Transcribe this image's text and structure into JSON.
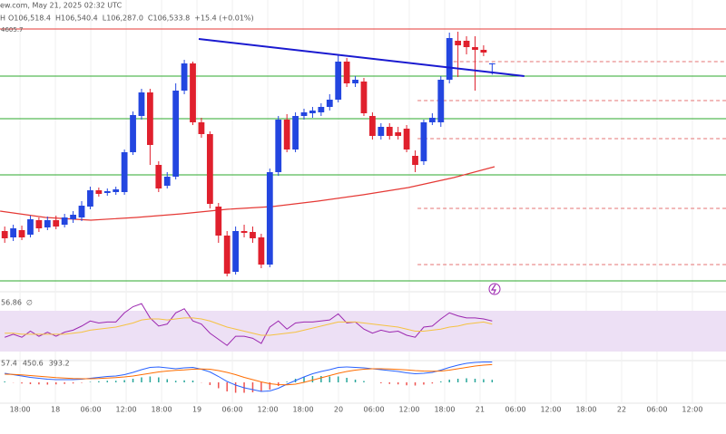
{
  "header": {
    "source": "ew.com, May 21, 2025 02:32 UTC",
    "interval": "H",
    "ohlc_labels": [
      "O106,518.4",
      "H106,540.4",
      "L106,287.0",
      "C106,533.8"
    ],
    "change": "+15.4 (+0.01%)",
    "price_tag": "4605.7"
  },
  "chart_data": [
    {
      "type": "candlestick",
      "up_color": "#2346e0",
      "down_color": "#e0202d",
      "grid": true,
      "xlim": [
        -3.4,
        119.7
      ],
      "ylim": [
        101534,
        107934
      ],
      "xticks": [
        {
          "value": 0,
          "label": "18:00"
        },
        {
          "value": 6,
          "label": "18"
        },
        {
          "value": 12,
          "label": "06:00"
        },
        {
          "value": 18,
          "label": "12:00"
        },
        {
          "value": 24,
          "label": "18:00"
        },
        {
          "value": 30,
          "label": "19"
        },
        {
          "value": 36,
          "label": "06:00"
        },
        {
          "value": 42,
          "label": "12:00"
        },
        {
          "value": 48,
          "label": "18:00"
        },
        {
          "value": 54,
          "label": "20"
        },
        {
          "value": 60,
          "label": "06:00"
        },
        {
          "value": 66,
          "label": "12:00"
        },
        {
          "value": 72,
          "label": "18:00"
        },
        {
          "value": 78,
          "label": "21"
        },
        {
          "value": 84,
          "label": "06:00"
        },
        {
          "value": 90,
          "label": "12:00"
        },
        {
          "value": 96,
          "label": "18:00"
        },
        {
          "value": 102,
          "label": "22"
        },
        {
          "value": 108,
          "label": "06:00"
        },
        {
          "value": 114,
          "label": "12:00"
        }
      ],
      "x": [
        -2.6,
        -1.15,
        0.3,
        1.75,
        3.2,
        4.65,
        6.1,
        7.55,
        9,
        10.45,
        11.9,
        13.35,
        14.8,
        16.25,
        17.7,
        19.15,
        20.6,
        22.05,
        23.5,
        24.95,
        26.4,
        27.85,
        29.3,
        30.75,
        32.2,
        33.65,
        35.1,
        36.55,
        38,
        39.45,
        40.9,
        42.35,
        43.8,
        45.25,
        46.7,
        48.15,
        49.6,
        51.05,
        52.5,
        53.95,
        55.4,
        56.85,
        58.3,
        59.75,
        61.2,
        62.65,
        64.1,
        65.55,
        67,
        68.45,
        69.9,
        71.35,
        72.8,
        74.25,
        75.7,
        77.15,
        78.6,
        80.05
      ],
      "open": [
        102834,
        102694,
        102854,
        102754,
        103074,
        102914,
        103074,
        102974,
        103094,
        103134,
        103374,
        103734,
        103674,
        103694,
        103694,
        104574,
        105374,
        105894,
        104294,
        103834,
        104034,
        105934,
        106534,
        105234,
        104974,
        103374,
        102734,
        101934,
        102834,
        102814,
        102694,
        102094,
        104134,
        105294,
        104634,
        105374,
        105434,
        105454,
        105574,
        105734,
        106574,
        106094,
        106134,
        105374,
        104934,
        105134,
        105014,
        105094,
        104494,
        104374,
        105234,
        105234,
        106174,
        107034,
        107034,
        106894,
        106834,
        106518.4
      ],
      "high": [
        102934,
        102974,
        102954,
        103174,
        103134,
        103154,
        103174,
        103214,
        103274,
        103494,
        103814,
        103794,
        103774,
        103814,
        104634,
        105474,
        105974,
        105974,
        104374,
        104134,
        106094,
        106614,
        106574,
        105334,
        105034,
        103454,
        102834,
        102934,
        102974,
        102934,
        102774,
        104214,
        105374,
        105414,
        105454,
        105534,
        105574,
        105654,
        105854,
        106734,
        106654,
        106254,
        106214,
        105454,
        105214,
        105214,
        105134,
        105174,
        104614,
        105294,
        105434,
        106254,
        107214,
        107234,
        107134,
        107134,
        106934,
        106540.4
      ],
      "low": [
        102574,
        102614,
        102634,
        102694,
        102814,
        102854,
        102874,
        102914,
        103014,
        103054,
        103314,
        103594,
        103614,
        103634,
        103634,
        104514,
        105294,
        104294,
        103694,
        103774,
        103974,
        105854,
        105174,
        104894,
        103334,
        102574,
        101834,
        101874,
        102694,
        102574,
        102014,
        102034,
        104054,
        104574,
        104574,
        105294,
        105334,
        105374,
        105494,
        105674,
        106014,
        106014,
        105374,
        104854,
        104854,
        104854,
        104854,
        104574,
        104134,
        104294,
        105174,
        105134,
        106094,
        106234,
        106734,
        105934,
        106694,
        106287.0
      ],
      "close": [
        102674,
        102894,
        102694,
        103094,
        102894,
        103074,
        102934,
        103134,
        103194,
        103394,
        103734,
        103654,
        103714,
        103754,
        104574,
        105394,
        105894,
        104734,
        103774,
        104034,
        105934,
        106534,
        105234,
        104974,
        103434,
        102734,
        101894,
        102834,
        102794,
        102674,
        102094,
        104134,
        105294,
        104634,
        105374,
        105454,
        105494,
        105574,
        105734,
        106574,
        106094,
        106174,
        105434,
        104934,
        105134,
        104934,
        104934,
        104634,
        104294,
        105234,
        105334,
        106174,
        107094,
        106934,
        106894,
        106834,
        106774,
        106533.8
      ],
      "levels": [
        {
          "value": 107294,
          "color": "#e53935"
        },
        {
          "value": 106254,
          "color": "#2ea82e"
        },
        {
          "value": 105314,
          "color": "#2ea82e"
        },
        {
          "value": 104074,
          "color": "#2ea82e"
        },
        {
          "value": 101734,
          "color": "#2ea82e"
        },
        {
          "value": 106574,
          "color": "#e57373",
          "x_from": 73.5,
          "dashed": true
        },
        {
          "value": 105714,
          "color": "#e57373",
          "x_from": 67.4,
          "dashed": true
        },
        {
          "value": 104874,
          "color": "#e57373",
          "x_from": 67.4,
          "dashed": true
        },
        {
          "value": 103334,
          "color": "#e57373",
          "x_from": 67.4,
          "dashed": true
        },
        {
          "value": 102094,
          "color": "#e57373",
          "x_from": 67.4,
          "dashed": true
        }
      ],
      "trendline": {
        "x": [
          30.3,
          85.5
        ],
        "values": [
          107074,
          106254
        ],
        "color": "#1a1ad0"
      },
      "ma": {
        "x": [
          -3.38,
          4.31,
          12,
          19.69,
          27.38,
          35.08,
          42.77,
          50.46,
          58.15,
          65.85,
          73.54,
          80.46
        ],
        "values": [
          103274,
          103134,
          103074,
          103134,
          103214,
          103314,
          103374,
          103494,
          103634,
          103794,
          104014,
          104254
        ],
        "color": "#e53935"
      }
    },
    {
      "type": "rsi",
      "ylim": [
        21.1,
        87.8
      ],
      "band": [
        30,
        70
      ],
      "band_color": "#ede0f5",
      "series": [
        {
          "color": "#9c27b0",
          "values": [
            44,
            47,
            44,
            50,
            45,
            49,
            45,
            49,
            51,
            55,
            60,
            58,
            59,
            59,
            68,
            74,
            77,
            63,
            55,
            57,
            68,
            72,
            60,
            57,
            48,
            42,
            36,
            45,
            45,
            43,
            38,
            54,
            60,
            52,
            58,
            59,
            59,
            60,
            61,
            67,
            58,
            59,
            52,
            48,
            51,
            49,
            50,
            46,
            44,
            54,
            55,
            62,
            68,
            65,
            63,
            63,
            62,
            60
          ]
        },
        {
          "color": "#f5c242",
          "values": [
            48,
            48,
            47,
            47,
            47,
            47,
            47,
            47,
            48,
            49,
            51,
            52,
            53,
            54,
            56,
            58,
            61,
            62,
            62,
            61,
            62,
            63,
            63,
            62,
            60,
            57,
            54,
            52,
            50,
            48,
            46,
            46,
            47,
            48,
            49,
            51,
            53,
            55,
            57,
            59,
            59,
            59,
            58,
            57,
            56,
            55,
            54,
            52,
            50,
            50,
            51,
            52,
            54,
            55,
            57,
            58,
            59,
            56.86
          ]
        }
      ],
      "symbol": "∅"
    },
    {
      "type": "macd",
      "ylim": [
        -460,
        480
      ],
      "histogram": {
        "up_color": "#26a69a",
        "down_color": "#ef5350",
        "values": [
          20,
          -5,
          -25,
          -40,
          -45,
          -50,
          -45,
          -35,
          -25,
          -10,
          10,
          25,
          35,
          35,
          50,
          80,
          110,
          130,
          110,
          70,
          35,
          45,
          40,
          -5,
          -60,
          -130,
          -200,
          -230,
          -230,
          -220,
          -210,
          -160,
          -80,
          15,
          80,
          120,
          140,
          140,
          130,
          130,
          100,
          60,
          30,
          0,
          -20,
          -35,
          -45,
          -65,
          -70,
          -50,
          -25,
          20,
          60,
          80,
          90,
          80,
          70,
          57.4
        ]
      },
      "series": [
        {
          "color": "#2962ff",
          "values": [
            200,
            170,
            140,
            110,
            90,
            70,
            60,
            60,
            60,
            70,
            90,
            110,
            130,
            140,
            170,
            220,
            280,
            330,
            340,
            320,
            300,
            320,
            330,
            290,
            230,
            130,
            20,
            -60,
            -120,
            -160,
            -200,
            -190,
            -130,
            -40,
            40,
            120,
            190,
            240,
            280,
            330,
            340,
            330,
            320,
            300,
            280,
            260,
            240,
            210,
            190,
            200,
            220,
            270,
            330,
            380,
            420,
            440,
            450,
            450.6
          ]
        },
        {
          "color": "#ff6d00",
          "values": [
            180,
            175,
            165,
            150,
            135,
            120,
            105,
            95,
            85,
            80,
            80,
            85,
            95,
            105,
            120,
            140,
            170,
            200,
            230,
            250,
            265,
            275,
            290,
            295,
            290,
            260,
            220,
            170,
            110,
            60,
            10,
            -30,
            -50,
            -55,
            -40,
            0,
            50,
            100,
            150,
            200,
            240,
            270,
            290,
            300,
            300,
            295,
            285,
            275,
            260,
            250,
            245,
            250,
            270,
            300,
            330,
            360,
            380,
            393.2
          ]
        }
      ]
    }
  ]
}
